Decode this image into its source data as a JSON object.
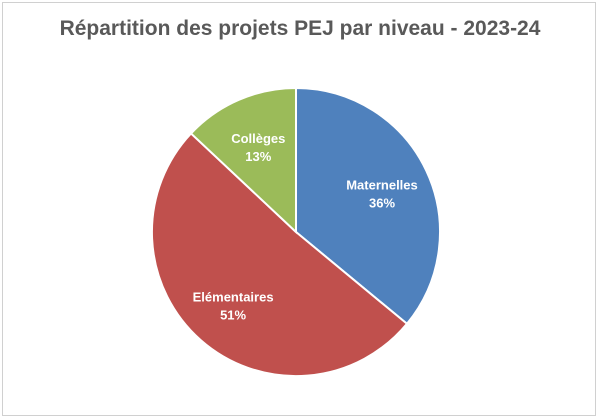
{
  "chart_data": {
    "type": "pie",
    "title": "Répartition des projets PEJ par niveau - 2023-24",
    "slices": [
      {
        "label": "Maternelles",
        "value": 36,
        "value_label": "36%",
        "color": "#4f81bd"
      },
      {
        "label": "Elémentaires",
        "value": 51,
        "value_label": "51%",
        "color": "#c0504d"
      },
      {
        "label": "Collèges",
        "value": 13,
        "value_label": "13%",
        "color": "#9bbb59"
      }
    ],
    "start_angle_deg": 0,
    "direction": "clockwise",
    "legend": "none"
  }
}
